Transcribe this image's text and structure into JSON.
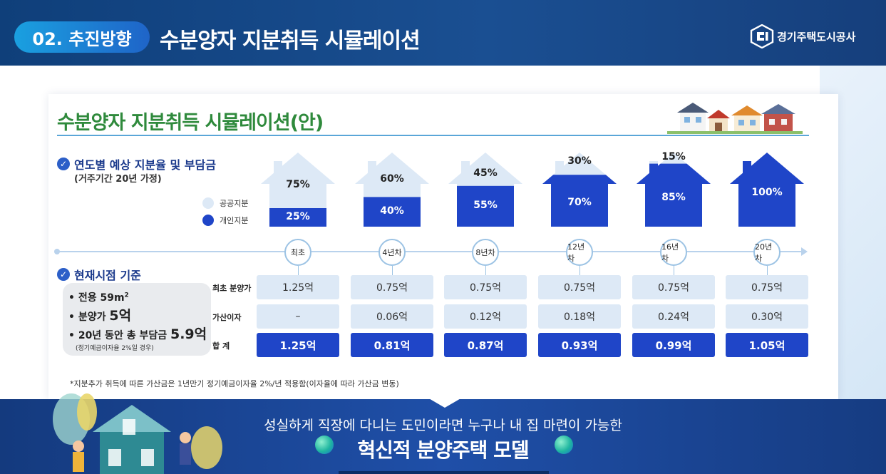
{
  "header": {
    "badge": "02. 추진방향",
    "title": "수분양자 지분취득 시뮬레이션",
    "logo_text": "경기주택도시공사",
    "logo_icon": "gh-logo-icon"
  },
  "card": {
    "title": "수분양자 지분취득 시뮬레이션(안)",
    "section1": {
      "title": "연도별 예상 지분율 및 부담금",
      "subtitle": "(거주기간 20년 가정)"
    },
    "legend": [
      {
        "label": "공공지분",
        "color": "#dde9f6"
      },
      {
        "label": "개인지분",
        "color": "#1f45c8"
      }
    ],
    "stages": [
      {
        "label": "최초",
        "public_pct": "75%",
        "private_pct": "25%",
        "public_share": 0.75
      },
      {
        "label": "4년차",
        "public_pct": "60%",
        "private_pct": "40%",
        "public_share": 0.6
      },
      {
        "label": "8년차",
        "public_pct": "45%",
        "private_pct": "55%",
        "public_share": 0.45
      },
      {
        "label": "12년차",
        "public_pct": "30%",
        "private_pct": "70%",
        "public_share": 0.3
      },
      {
        "label": "16년차",
        "public_pct": "15%",
        "private_pct": "85%",
        "public_share": 0.15
      },
      {
        "label": "20년차",
        "public_pct": "",
        "private_pct": "100%",
        "public_share": 0.0
      }
    ],
    "section2": {
      "title": "현재시점 기준",
      "items": [
        {
          "prefix": "• 전용 59m",
          "sup": "2",
          "value": ""
        },
        {
          "prefix": "• 분양가 ",
          "value": "5억"
        },
        {
          "prefix": "• 20년 동안 총 부담금 ",
          "value": "5.9억"
        }
      ],
      "note": "(정기예금이자율 2%일 경우)"
    },
    "rows": [
      {
        "label": "최초 분양가",
        "style": "light",
        "values": [
          "1.25억",
          "0.75억",
          "0.75억",
          "0.75억",
          "0.75억",
          "0.75억"
        ]
      },
      {
        "label": "가산이자",
        "style": "light",
        "values": [
          "–",
          "0.06억",
          "0.12억",
          "0.18억",
          "0.24억",
          "0.30억"
        ]
      },
      {
        "label": "합 계",
        "style": "dark",
        "values": [
          "1.25억",
          "0.81억",
          "0.87억",
          "0.93억",
          "0.99억",
          "1.05억"
        ]
      }
    ],
    "footnote": "*지분추가 취득에 따른 가산금은 1년만기 정기예금이자율  2%/년 적용함(이자율에 따라 가산금 변동)"
  },
  "footer": {
    "line1": "성실하게 직장에 다니는 도민이라면 누구나 내 집 마련이 가능한",
    "line2": "혁신적 분양주택 모델"
  },
  "colors": {
    "public": "#dde9f6",
    "private": "#1f45c8",
    "header": "#1a4f92",
    "title_green": "#2f8a3c"
  }
}
